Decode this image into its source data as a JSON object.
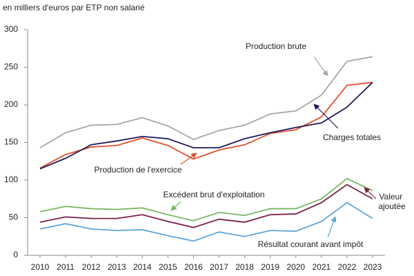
{
  "chart_data": {
    "type": "line",
    "subtitle": "en milliers d'euros par ETP non salarié",
    "x": [
      "2010",
      "2011",
      "2012",
      "2013",
      "2014",
      "2015",
      "2016",
      "2017",
      "2018",
      "2019",
      "2020",
      "2021",
      "2022",
      "2023"
    ],
    "series": [
      {
        "name": "Production brute",
        "color": "#a6a6a6",
        "values": [
          143,
          163,
          173,
          174,
          183,
          172,
          154,
          166,
          173,
          188,
          192,
          213,
          258,
          264
        ]
      },
      {
        "name": "Production de l'exercice",
        "color": "#e0502c",
        "values": [
          116,
          134,
          144,
          146,
          156,
          146,
          128,
          140,
          147,
          162,
          167,
          184,
          226,
          230
        ]
      },
      {
        "name": "Charges totales",
        "color": "#1f1a5e",
        "values": [
          115,
          129,
          147,
          152,
          158,
          155,
          143,
          143,
          155,
          163,
          170,
          176,
          197,
          230
        ]
      },
      {
        "name": "Excédent brut d'exploitation",
        "color": "#7bb661",
        "values": [
          58,
          65,
          62,
          61,
          63,
          54,
          46,
          57,
          53,
          62,
          62,
          75,
          102,
          86
        ]
      },
      {
        "name": "Valeur ajoutée",
        "color": "#7b1e45",
        "values": [
          44,
          51,
          49,
          49,
          54,
          45,
          37,
          48,
          44,
          54,
          55,
          70,
          94,
          75
        ]
      },
      {
        "name": "Résultat courant avant impôt",
        "color": "#5ea4d9",
        "values": [
          35,
          42,
          35,
          33,
          34,
          26,
          19,
          31,
          25,
          33,
          32,
          45,
          70,
          49
        ]
      }
    ],
    "ylim": [
      0,
      300
    ],
    "yticks": [
      0,
      50,
      100,
      150,
      200,
      250,
      300
    ],
    "grid": false
  }
}
